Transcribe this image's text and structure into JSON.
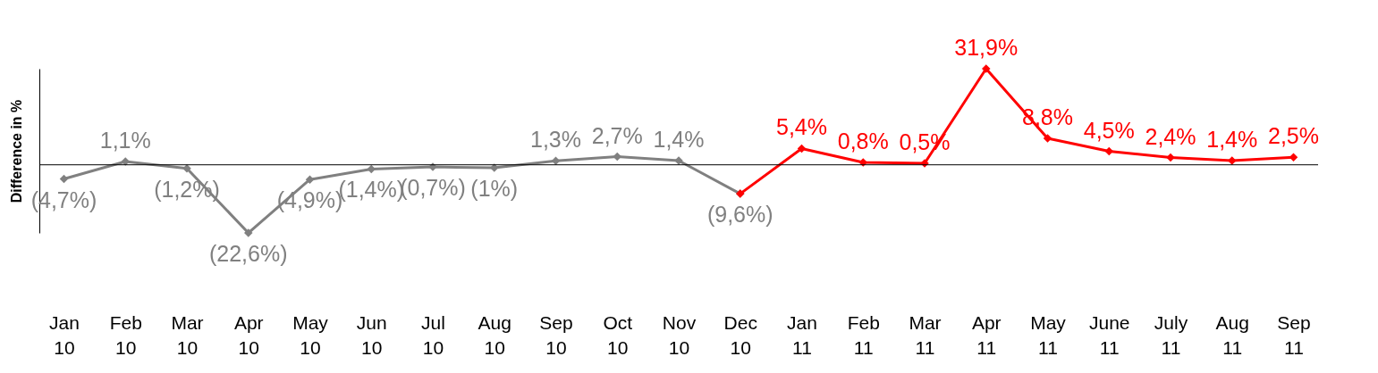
{
  "chart_data": {
    "type": "line",
    "ylabel": "Difference in %",
    "categories": [
      "Jan 10",
      "Feb 10",
      "Mar 10",
      "Apr 10",
      "May 10",
      "Jun 10",
      "Jul 10",
      "Aug 10",
      "Sep 10",
      "Oct 10",
      "Nov 10",
      "Dec 10",
      "Jan 11",
      "Feb 11",
      "Mar 11",
      "Apr 11",
      "May 11",
      "June 11",
      "July 11",
      "Aug 11",
      "Sep 11"
    ],
    "series": [
      {
        "color": "#808080",
        "values": [
          -4.7,
          1.1,
          -1.2,
          -22.6,
          -4.9,
          -1.4,
          -0.7,
          -1,
          1.3,
          2.7,
          1.4,
          -9.6,
          null,
          null,
          null,
          null,
          null,
          null,
          null,
          null,
          null
        ],
        "value_labels": [
          "(4,7%)",
          "1,1%",
          "(1,2%)",
          "(22,6%)",
          "(4,9%)",
          "(1,4%)",
          "(0,7%)",
          "(1%)",
          "1,3%",
          "2,7%",
          "1,4%",
          "(9,6%)",
          null,
          null,
          null,
          null,
          null,
          null,
          null,
          null,
          null
        ]
      },
      {
        "color": "#ff0000",
        "values": [
          null,
          null,
          null,
          null,
          null,
          null,
          null,
          null,
          null,
          null,
          null,
          -9.6,
          5.4,
          0.8,
          0.5,
          31.9,
          8.8,
          4.5,
          2.4,
          1.4,
          2.5
        ],
        "value_labels": [
          null,
          null,
          null,
          null,
          null,
          null,
          null,
          null,
          null,
          null,
          null,
          null,
          "5,4%",
          "0,8%",
          "0,5%",
          "31,9%",
          "8,8%",
          "4,5%",
          "2,4%",
          "1,4%",
          "2,5%"
        ]
      }
    ],
    "ref_lines": [
      {
        "axis": "y",
        "value": 0,
        "color": "#000000"
      }
    ],
    "marker": "diamond",
    "line_style": "solid"
  }
}
